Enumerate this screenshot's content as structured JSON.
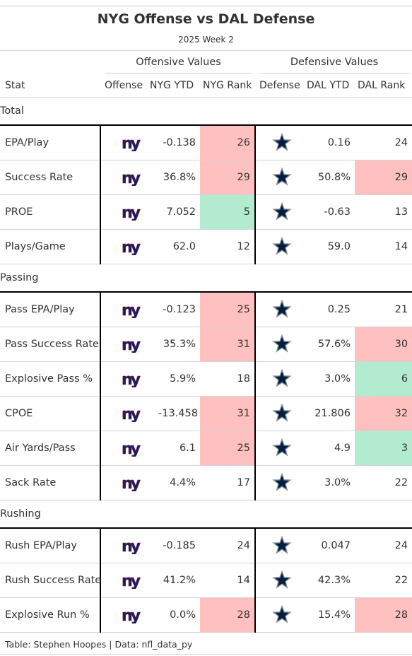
{
  "title": "NYG Offense vs DAL Defense",
  "subtitle": "2025 Week 2",
  "spanners": {
    "offense": "Offensive Values",
    "defense": "Defensive Values"
  },
  "columns": {
    "stat": "Stat",
    "offense": "Offense",
    "off_ytd": "NYG YTD",
    "off_rank": "NYG Rank",
    "defense": "Defense",
    "def_ytd": "DAL YTD",
    "def_rank": "DAL Rank"
  },
  "colors": {
    "bad": "#ffc0c0",
    "good": "#b2ebd0",
    "giants_blue": "#0b2265",
    "giants_red": "#a71930",
    "cowboys_navy": "#041e42",
    "cowboys_silver": "#869397"
  },
  "icons": {
    "offense": "ny-giants-logo",
    "defense": "cowboys-star-logo"
  },
  "groups": [
    {
      "label": "Total",
      "rows": [
        {
          "stat": "EPA/Play",
          "off_ytd": "-0.138",
          "off_rank": "26",
          "off_rank_color": "bad",
          "def_ytd": "0.16",
          "def_rank": "24",
          "def_rank_color": ""
        },
        {
          "stat": "Success Rate",
          "off_ytd": "36.8%",
          "off_rank": "29",
          "off_rank_color": "bad",
          "def_ytd": "50.8%",
          "def_rank": "29",
          "def_rank_color": "bad"
        },
        {
          "stat": "PROE",
          "off_ytd": "7.052",
          "off_rank": "5",
          "off_rank_color": "good",
          "def_ytd": "-0.63",
          "def_rank": "13",
          "def_rank_color": ""
        },
        {
          "stat": "Plays/Game",
          "off_ytd": "62.0",
          "off_rank": "12",
          "off_rank_color": "",
          "def_ytd": "59.0",
          "def_rank": "14",
          "def_rank_color": ""
        }
      ]
    },
    {
      "label": "Passing",
      "rows": [
        {
          "stat": "Pass EPA/Play",
          "off_ytd": "-0.123",
          "off_rank": "25",
          "off_rank_color": "bad",
          "def_ytd": "0.25",
          "def_rank": "21",
          "def_rank_color": ""
        },
        {
          "stat": "Pass Success Rate",
          "off_ytd": "35.3%",
          "off_rank": "31",
          "off_rank_color": "bad",
          "def_ytd": "57.6%",
          "def_rank": "30",
          "def_rank_color": "bad"
        },
        {
          "stat": "Explosive Pass %",
          "off_ytd": "5.9%",
          "off_rank": "18",
          "off_rank_color": "",
          "def_ytd": "3.0%",
          "def_rank": "6",
          "def_rank_color": "good"
        },
        {
          "stat": "CPOE",
          "off_ytd": "-13.458",
          "off_rank": "31",
          "off_rank_color": "bad",
          "def_ytd": "21.806",
          "def_rank": "32",
          "def_rank_color": "bad"
        },
        {
          "stat": "Air Yards/Pass",
          "off_ytd": "6.1",
          "off_rank": "25",
          "off_rank_color": "bad",
          "def_ytd": "4.9",
          "def_rank": "3",
          "def_rank_color": "good"
        },
        {
          "stat": "Sack Rate",
          "off_ytd": "4.4%",
          "off_rank": "17",
          "off_rank_color": "",
          "def_ytd": "3.0%",
          "def_rank": "22",
          "def_rank_color": ""
        }
      ]
    },
    {
      "label": "Rushing",
      "rows": [
        {
          "stat": "Rush EPA/Play",
          "off_ytd": "-0.185",
          "off_rank": "24",
          "off_rank_color": "",
          "def_ytd": "0.047",
          "def_rank": "24",
          "def_rank_color": ""
        },
        {
          "stat": "Rush Success Rate",
          "off_ytd": "41.2%",
          "off_rank": "14",
          "off_rank_color": "",
          "def_ytd": "42.3%",
          "def_rank": "22",
          "def_rank_color": ""
        },
        {
          "stat": "Explosive Run %",
          "off_ytd": "0.0%",
          "off_rank": "28",
          "off_rank_color": "bad",
          "def_ytd": "15.4%",
          "def_rank": "28",
          "def_rank_color": "bad"
        }
      ]
    }
  ],
  "footer": "Table: Stephen Hoopes | Data: nfl_data_py"
}
